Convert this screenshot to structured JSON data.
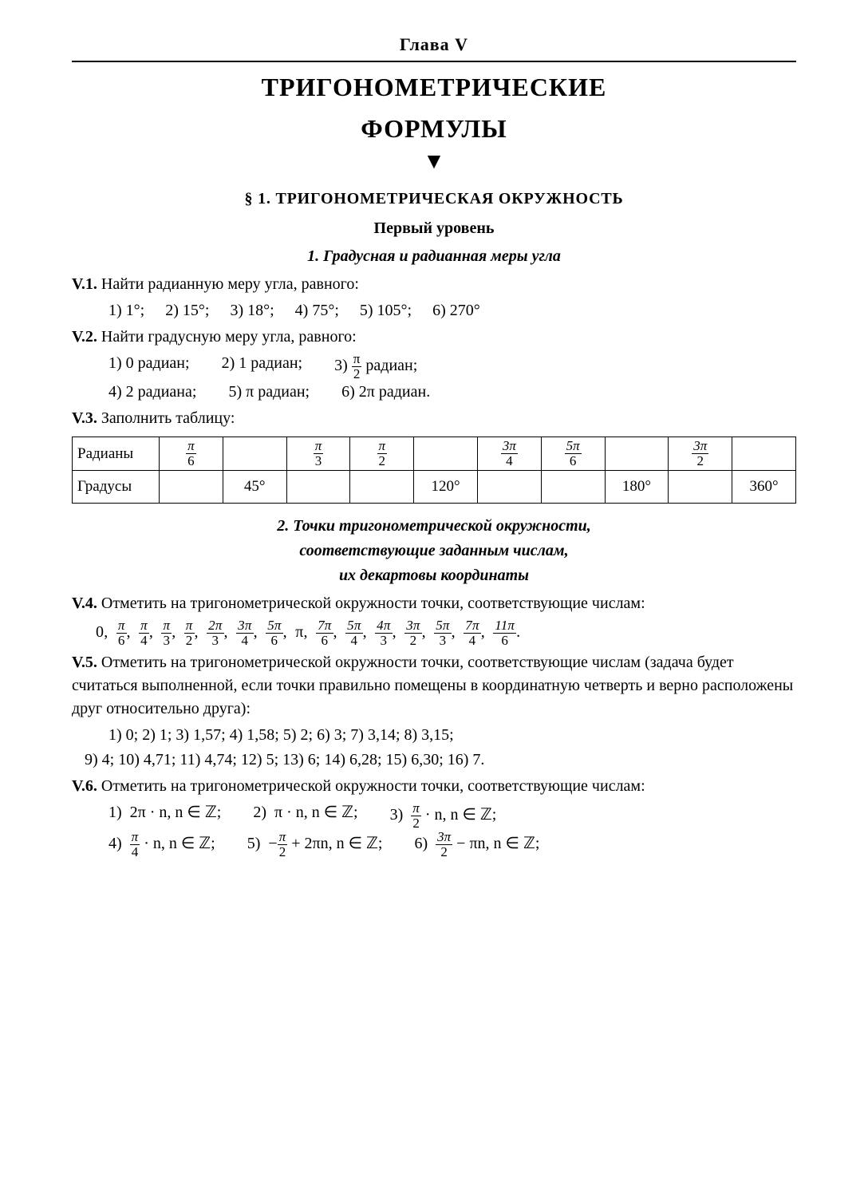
{
  "chapter_label": "Глава  V",
  "main_title_1": "ТРИГОНОМЕТРИЧЕСКИЕ",
  "main_title_2": "ФОРМУЛЫ",
  "section1_title": "§ 1.  ТРИГОНОМЕТРИЧЕСКАЯ  ОКРУЖНОСТЬ",
  "level_title": "Первый  уровень",
  "sub1_title": "1.  Градусная и радианная меры угла",
  "v1": {
    "num": "V.1.",
    "text": "Найти радианную меру угла, равного:",
    "items": [
      "1) 1°;",
      "2) 15°;",
      "3) 18°;",
      "4) 75°;",
      "5) 105°;",
      "6) 270°"
    ]
  },
  "v2": {
    "num": "V.2.",
    "text": "Найти градусную меру угла, равного:",
    "row1": {
      "a": "1) 0 радиан;",
      "b": "2) 1 радиан;",
      "c_pre": "3) ",
      "c_num": "π",
      "c_den": "2",
      "c_post": " радиан;"
    },
    "row2": {
      "a": "4) 2 радиана;",
      "b": "5) π радиан;",
      "c": "6) 2π радиан."
    }
  },
  "v3": {
    "num": "V.3.",
    "text": "Заполнить таблицу:",
    "table": {
      "row_labels": [
        "Радианы",
        "Градусы"
      ],
      "radians": [
        {
          "num": "π",
          "den": "6"
        },
        null,
        {
          "num": "π",
          "den": "3"
        },
        {
          "num": "π",
          "den": "2"
        },
        null,
        {
          "num": "3π",
          "den": "4"
        },
        {
          "num": "5π",
          "den": "6"
        },
        null,
        {
          "num": "3π",
          "den": "2"
        },
        null
      ],
      "degrees": [
        null,
        "45°",
        null,
        null,
        "120°",
        null,
        null,
        "180°",
        null,
        "360°"
      ]
    }
  },
  "sub2_title_l1": "2.  Точки тригонометрической окружности,",
  "sub2_title_l2": "соответствующие заданным числам,",
  "sub2_title_l3": "их декартовы координаты",
  "v4": {
    "num": "V.4.",
    "text": "Отметить на тригонометрической окружности точки, соответствующие числам:",
    "list": [
      {
        "plain": "0"
      },
      {
        "num": "π",
        "den": "6"
      },
      {
        "num": "π",
        "den": "4"
      },
      {
        "num": "π",
        "den": "3"
      },
      {
        "num": "π",
        "den": "2"
      },
      {
        "num": "2π",
        "den": "3"
      },
      {
        "num": "3π",
        "den": "4"
      },
      {
        "num": "5π",
        "den": "6"
      },
      {
        "plain": "π"
      },
      {
        "num": "7π",
        "den": "6"
      },
      {
        "num": "5π",
        "den": "4"
      },
      {
        "num": "4π",
        "den": "3"
      },
      {
        "num": "3π",
        "den": "2"
      },
      {
        "num": "5π",
        "den": "3"
      },
      {
        "num": "7π",
        "den": "4"
      },
      {
        "num": "11π",
        "den": "6"
      }
    ]
  },
  "v5": {
    "num": "V.5.",
    "text": "Отметить на тригонометрической окружности точки, соответствующие числам (задача будет считаться выполненной, если точки правильно помещены в координатную четверть и верно расположены друг относительно друга):",
    "line1": "1) 0;  2) 1;  3) 1,57;  4) 1,58;  5) 2;  6) 3;  7) 3,14;  8) 3,15;",
    "line2": "9) 4;  10) 4,71;  11) 4,74;  12) 5;  13) 6;  14) 6,28;  15) 6,30;  16) 7."
  },
  "v6": {
    "num": "V.6.",
    "text": "Отметить на тригонометрической окружности точки, соответствующие числам:",
    "items": [
      {
        "label": "1)",
        "pre": "2π · n,  n ∈ ℤ;"
      },
      {
        "label": "2)",
        "pre": "π · n,  n ∈ ℤ;"
      },
      {
        "label": "3)",
        "fracNum": "π",
        "fracDen": "2",
        "post": " · n,  n ∈ ℤ;"
      },
      {
        "label": "4)",
        "fracNum": "π",
        "fracDen": "4",
        "post": " · n,  n ∈ ℤ;"
      },
      {
        "label": "5)",
        "neg": "−",
        "fracNum": "π",
        "fracDen": "2",
        "post": " + 2πn,  n ∈ ℤ;"
      },
      {
        "label": "6)",
        "fracNum": "3π",
        "fracDen": "2",
        "post": " − πn,  n ∈ ℤ;"
      }
    ]
  }
}
